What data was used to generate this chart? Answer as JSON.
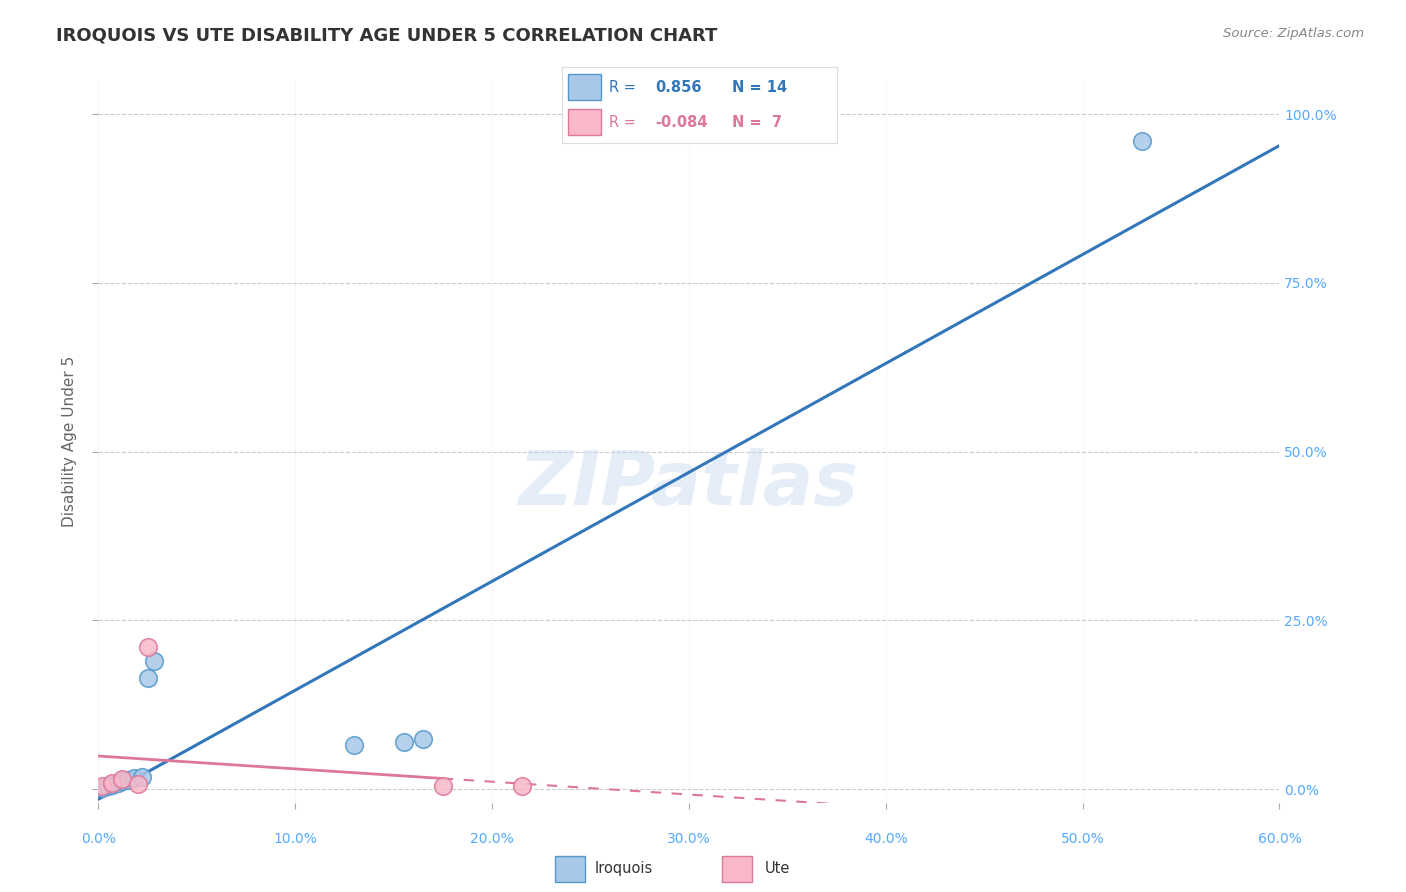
{
  "title": "IROQUOIS VS UTE DISABILITY AGE UNDER 5 CORRELATION CHART",
  "source": "Source: ZipAtlas.com",
  "ylabel_label": "Disability Age Under 5",
  "xlim": [
    0.0,
    0.6
  ],
  "ylim": [
    -0.02,
    1.05
  ],
  "xticks": [
    0.0,
    0.1,
    0.2,
    0.3,
    0.4,
    0.5,
    0.6
  ],
  "xtick_labels": [
    "0.0%",
    "10.0%",
    "20.0%",
    "30.0%",
    "40.0%",
    "50.0%",
    "60.0%"
  ],
  "yticks": [
    0.0,
    0.25,
    0.5,
    0.75,
    1.0
  ],
  "ytick_labels": [
    "0.0%",
    "25.0%",
    "50.0%",
    "75.0%",
    "100.0%"
  ],
  "iroquois_x": [
    0.002,
    0.005,
    0.007,
    0.01,
    0.012,
    0.015,
    0.018,
    0.022,
    0.025,
    0.028,
    0.13,
    0.155,
    0.165,
    0.53
  ],
  "iroquois_y": [
    0.002,
    0.005,
    0.007,
    0.01,
    0.012,
    0.014,
    0.016,
    0.018,
    0.165,
    0.19,
    0.065,
    0.07,
    0.075,
    0.96
  ],
  "ute_x": [
    0.002,
    0.007,
    0.012,
    0.02,
    0.025,
    0.175,
    0.215
  ],
  "ute_y": [
    0.005,
    0.01,
    0.015,
    0.008,
    0.21,
    0.005,
    0.005
  ],
  "iroquois_R": 0.856,
  "iroquois_N": 14,
  "ute_R": -0.084,
  "ute_N": 7,
  "blue_scatter_color": "#a8c8e8",
  "blue_scatter_edge": "#5599cc",
  "blue_line_color": "#3377bb",
  "pink_scatter_color": "#f8b8c8",
  "pink_scatter_edge": "#dd7799",
  "pink_line_color": "#dd7799",
  "watermark": "ZIPatlas",
  "background_color": "#ffffff",
  "grid_color": "#cccccc",
  "title_color": "#333333",
  "axis_label_color": "#666666",
  "tick_label_color": "#55aaff"
}
